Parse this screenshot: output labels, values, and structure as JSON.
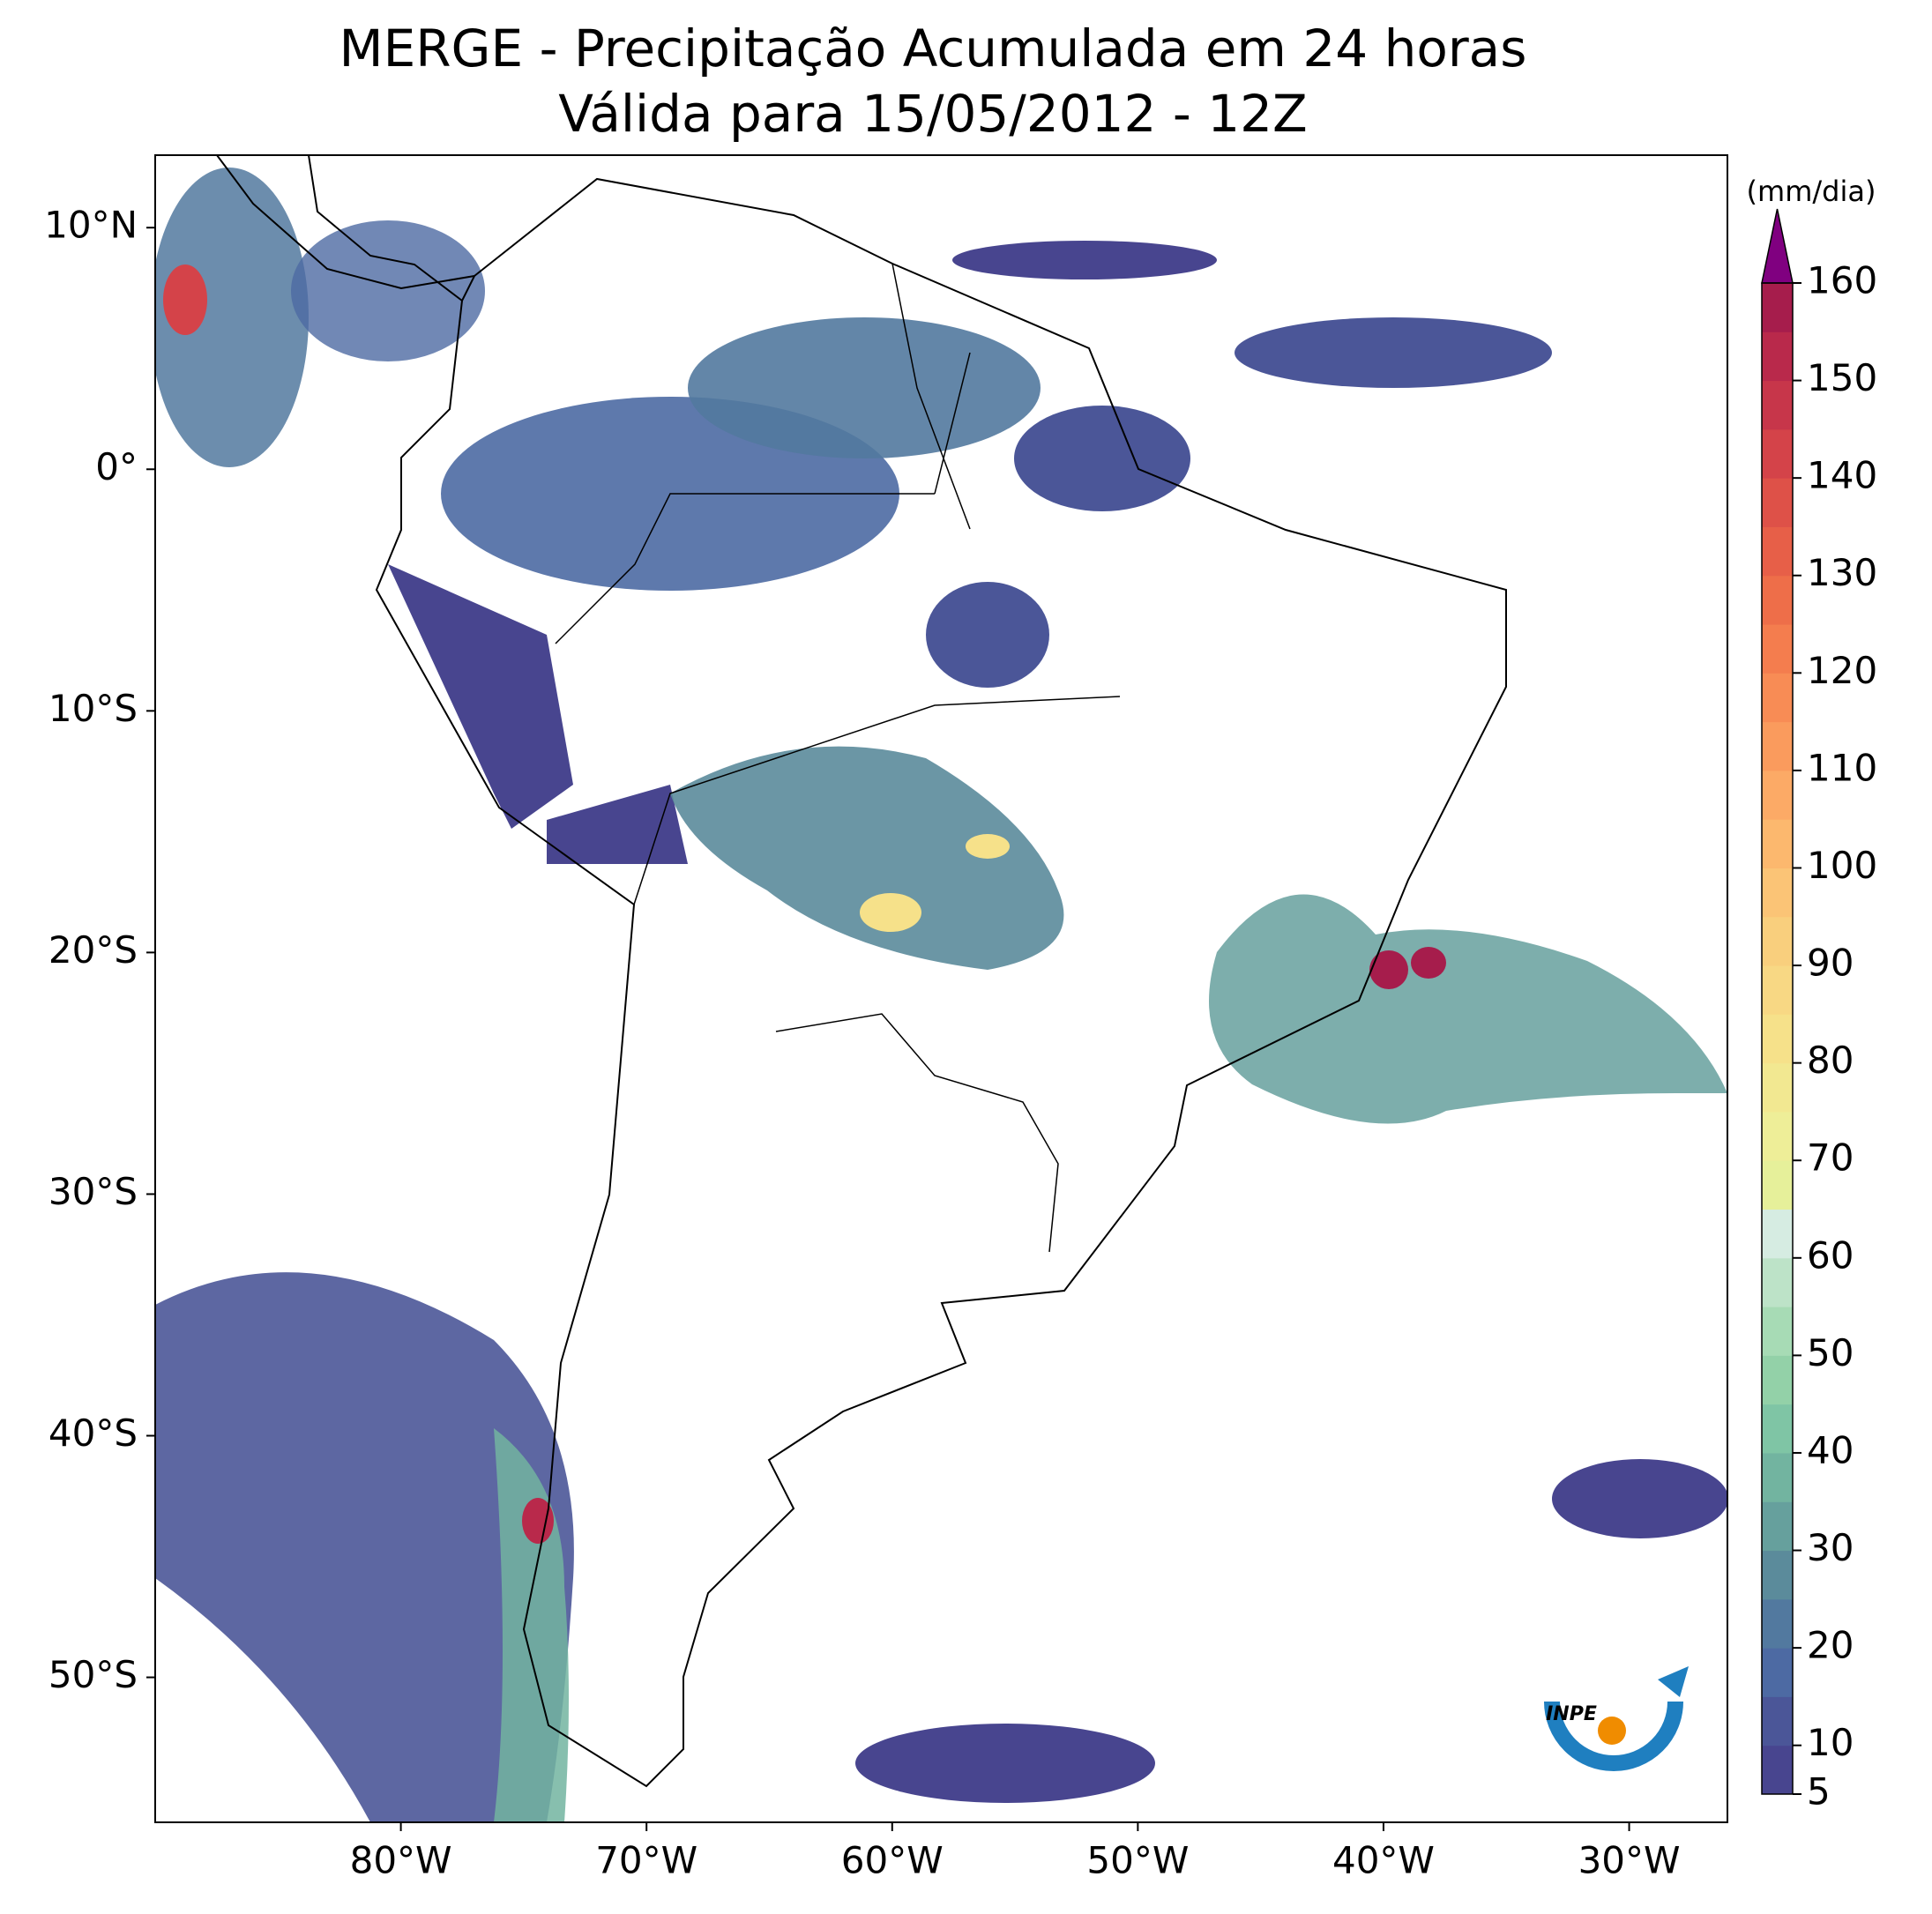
{
  "map": {
    "title": "MERGE - Precipitação Acumulada em 24 horas",
    "subtitle": "Válida para 15/05/2012 - 12Z",
    "xlim": [
      -90,
      -26
    ],
    "ylim": [
      -56,
      13
    ],
    "xticks": [
      {
        "value": -80,
        "label": "80°W"
      },
      {
        "value": -70,
        "label": "70°W"
      },
      {
        "value": -60,
        "label": "60°W"
      },
      {
        "value": -50,
        "label": "50°W"
      },
      {
        "value": -40,
        "label": "40°W"
      },
      {
        "value": -30,
        "label": "30°W"
      }
    ],
    "yticks": [
      {
        "value": 10,
        "label": "10°N"
      },
      {
        "value": 0,
        "label": "0°"
      },
      {
        "value": -10,
        "label": "10°S"
      },
      {
        "value": -20,
        "label": "20°S"
      },
      {
        "value": -30,
        "label": "30°S"
      },
      {
        "value": -40,
        "label": "40°S"
      },
      {
        "value": -50,
        "label": "50°S"
      }
    ],
    "colorbar": {
      "label": "(mm/dia)",
      "lim": [
        5,
        160
      ],
      "ticks": [
        5,
        10,
        20,
        30,
        40,
        50,
        60,
        70,
        80,
        90,
        100,
        110,
        120,
        130,
        140,
        150,
        160
      ],
      "colors": [
        "#48458f",
        "#4b5698",
        "#4d6aa3",
        "#52799f",
        "#5b8b9b",
        "#66a09d",
        "#72b4a0",
        "#7fc5a5",
        "#93d1a8",
        "#a7dbb5",
        "#bde3c8",
        "#d6ece2",
        "#e6f09a",
        "#eeee98",
        "#f2e891",
        "#f6e18a",
        "#f8d884",
        "#f9cf7d",
        "#fbc476",
        "#fcb86e",
        "#fcaa66",
        "#fa9b5d",
        "#f88c55",
        "#f47d4e",
        "#ee6e49",
        "#e75f48",
        "#de5148",
        "#d44349",
        "#c7364a",
        "#b9294b",
        "#a61d4c"
      ],
      "extend_color": "#800080"
    },
    "logo_text": "INPE"
  }
}
